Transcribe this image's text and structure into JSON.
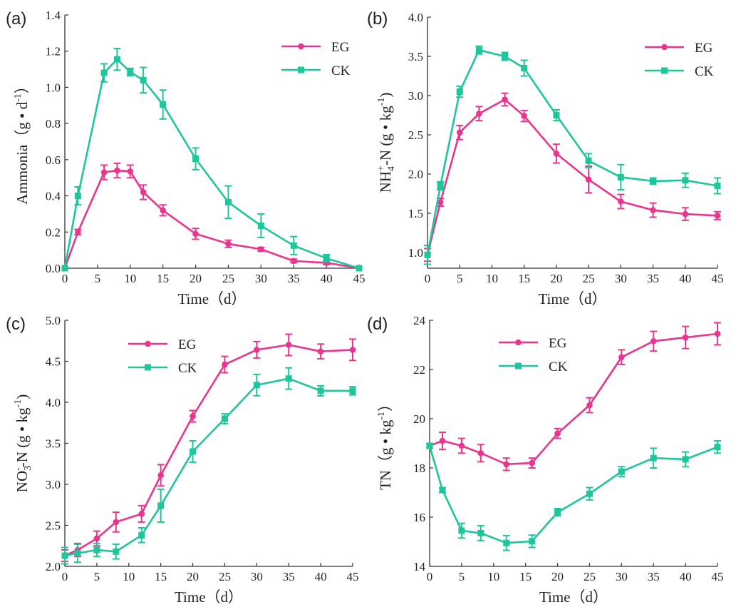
{
  "colors": {
    "EG": "#e8368f",
    "CK": "#1fc59b"
  },
  "chart_data": [
    {
      "panel_label": "(a)",
      "type": "line",
      "ylabel": {
        "main": "Ammonia（g • d",
        "sup": "-1",
        "tail": "）"
      },
      "xlabel": "Time（d）",
      "xlim": [
        0,
        45
      ],
      "ylim": [
        0,
        1.4
      ],
      "xticks": [
        0,
        5,
        10,
        15,
        20,
        25,
        30,
        35,
        40,
        45
      ],
      "yticks": [
        "0.0",
        "0.2",
        "0.4",
        "0.6",
        "0.8",
        "1.0",
        "1.2",
        "1.4"
      ],
      "legend_position": "top-right",
      "series": [
        {
          "name": "EG",
          "marker": "circle",
          "x": [
            0,
            2,
            6,
            8,
            10,
            12,
            15,
            20,
            25,
            30,
            35,
            40,
            45
          ],
          "y": [
            0.0,
            0.2,
            0.53,
            0.54,
            0.535,
            0.42,
            0.32,
            0.19,
            0.135,
            0.105,
            0.04,
            0.03,
            0.0
          ],
          "err": [
            0.0,
            0.015,
            0.04,
            0.04,
            0.035,
            0.04,
            0.03,
            0.03,
            0.02,
            0.01,
            0.01,
            0.01,
            0.0
          ]
        },
        {
          "name": "CK",
          "marker": "square",
          "x": [
            0,
            2,
            6,
            8,
            10,
            12,
            15,
            20,
            25,
            30,
            35,
            40,
            45
          ],
          "y": [
            0.0,
            0.4,
            1.08,
            1.155,
            1.085,
            1.04,
            0.905,
            0.605,
            0.365,
            0.235,
            0.125,
            0.055,
            0.0
          ],
          "err": [
            0.0,
            0.05,
            0.05,
            0.06,
            0.02,
            0.07,
            0.08,
            0.06,
            0.09,
            0.065,
            0.05,
            0.02,
            0.0
          ]
        }
      ]
    },
    {
      "panel_label": "(b)",
      "type": "line",
      "ylabel": {
        "main": "NH",
        "sub": "4",
        "sup": "+",
        "tail": "-N (g • kg",
        "sup2": "-1",
        "tail2": ")"
      },
      "xlabel": "Time（d）",
      "xlim": [
        0,
        45
      ],
      "ylim": [
        0.8,
        4.0
      ],
      "xticks": [
        0,
        5,
        10,
        15,
        20,
        25,
        30,
        35,
        40,
        45
      ],
      "yticks": [
        "1.0",
        "1.5",
        "2.0",
        "2.5",
        "3.0",
        "3.5",
        "4.0"
      ],
      "legend_position": "top-right",
      "series": [
        {
          "name": "EG",
          "marker": "circle",
          "x": [
            0,
            2,
            5,
            8,
            12,
            15,
            20,
            25,
            30,
            35,
            40,
            45
          ],
          "y": [
            0.97,
            1.64,
            2.53,
            2.77,
            2.95,
            2.74,
            2.26,
            1.93,
            1.65,
            1.54,
            1.49,
            1.47
          ],
          "err": [
            0.08,
            0.05,
            0.09,
            0.09,
            0.08,
            0.07,
            0.12,
            0.17,
            0.09,
            0.09,
            0.08,
            0.05
          ]
        },
        {
          "name": "CK",
          "marker": "square",
          "x": [
            0,
            2,
            5,
            8,
            12,
            15,
            20,
            25,
            30,
            35,
            40,
            45
          ],
          "y": [
            0.97,
            1.85,
            3.05,
            3.58,
            3.5,
            3.35,
            2.75,
            2.17,
            1.96,
            1.91,
            1.92,
            1.85
          ],
          "err": [
            0.12,
            0.05,
            0.07,
            0.05,
            0.05,
            0.1,
            0.07,
            0.09,
            0.16,
            0.04,
            0.09,
            0.1
          ]
        }
      ]
    },
    {
      "panel_label": "(c)",
      "type": "line",
      "ylabel": {
        "main": "NO",
        "sub": "3",
        "sup": "-",
        "tail": "-N (g • kg",
        "sup2": "-1",
        "tail2": ")"
      },
      "xlabel": "Time（d）",
      "xlim": [
        0,
        45
      ],
      "ylim": [
        2.0,
        5.0
      ],
      "xticks": [
        0,
        5,
        10,
        15,
        20,
        25,
        30,
        35,
        40,
        45
      ],
      "yticks": [
        "2.0",
        "2.5",
        "3.0",
        "3.5",
        "4.0",
        "4.5",
        "5.0"
      ],
      "legend_position": "top-left",
      "series": [
        {
          "name": "EG",
          "marker": "circle",
          "x": [
            0,
            2,
            5,
            8,
            12,
            15,
            20,
            25,
            30,
            35,
            40,
            45
          ],
          "y": [
            2.13,
            2.2,
            2.34,
            2.54,
            2.64,
            3.11,
            3.83,
            4.46,
            4.64,
            4.7,
            4.62,
            4.64
          ],
          "err": [
            0.07,
            0.08,
            0.09,
            0.12,
            0.1,
            0.13,
            0.07,
            0.1,
            0.1,
            0.13,
            0.09,
            0.13
          ]
        },
        {
          "name": "CK",
          "marker": "square",
          "x": [
            0,
            2,
            5,
            8,
            12,
            15,
            20,
            25,
            30,
            35,
            40,
            45
          ],
          "y": [
            2.13,
            2.16,
            2.2,
            2.18,
            2.38,
            2.74,
            3.4,
            3.8,
            4.21,
            4.29,
            4.14,
            4.14
          ],
          "err": [
            0.1,
            0.11,
            0.08,
            0.09,
            0.09,
            0.2,
            0.13,
            0.06,
            0.13,
            0.13,
            0.06,
            0.05
          ]
        }
      ]
    },
    {
      "panel_label": "(d)",
      "type": "line",
      "ylabel": {
        "main": "TN（g • kg",
        "sup": "-1",
        "tail": "）"
      },
      "xlabel": "Time（d）",
      "xlim": [
        0,
        45
      ],
      "ylim": [
        14,
        24
      ],
      "xticks": [
        0,
        5,
        10,
        15,
        20,
        25,
        30,
        35,
        40,
        45
      ],
      "yticks": [
        "14",
        "16",
        "18",
        "20",
        "22",
        "24"
      ],
      "legend_position": "top-left",
      "series": [
        {
          "name": "EG",
          "marker": "circle",
          "x": [
            0,
            2,
            5,
            8,
            12,
            16,
            20,
            25,
            30,
            35,
            40,
            45
          ],
          "y": [
            18.9,
            19.1,
            18.9,
            18.6,
            18.15,
            18.2,
            19.4,
            20.55,
            22.5,
            23.15,
            23.3,
            23.45
          ],
          "err": [
            0.1,
            0.35,
            0.3,
            0.35,
            0.25,
            0.2,
            0.2,
            0.3,
            0.3,
            0.4,
            0.45,
            0.45
          ]
        },
        {
          "name": "CK",
          "marker": "square",
          "x": [
            0,
            2,
            5,
            8,
            12,
            16,
            20,
            25,
            30,
            35,
            40,
            45
          ],
          "y": [
            18.9,
            17.1,
            15.45,
            15.35,
            14.95,
            15.02,
            16.2,
            16.95,
            17.85,
            18.4,
            18.35,
            18.85
          ],
          "err": [
            0.1,
            0.1,
            0.3,
            0.3,
            0.3,
            0.25,
            0.15,
            0.25,
            0.2,
            0.4,
            0.3,
            0.25
          ]
        }
      ]
    }
  ]
}
